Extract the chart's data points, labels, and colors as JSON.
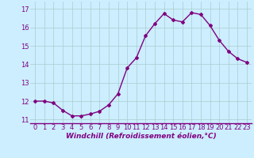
{
  "x": [
    0,
    1,
    2,
    3,
    4,
    5,
    6,
    7,
    8,
    9,
    10,
    11,
    12,
    13,
    14,
    15,
    16,
    17,
    18,
    19,
    20,
    21,
    22,
    23
  ],
  "y": [
    12.0,
    12.0,
    11.9,
    11.5,
    11.2,
    11.2,
    11.3,
    11.45,
    11.8,
    12.4,
    13.8,
    14.35,
    15.55,
    16.2,
    16.75,
    16.4,
    16.3,
    16.8,
    16.7,
    16.1,
    15.3,
    14.7,
    14.3,
    14.1
  ],
  "line_color": "#800080",
  "marker": "D",
  "marker_size": 2.0,
  "bg_color": "#cceeff",
  "grid_color": "#aacccc",
  "xlabel": "Windchill (Refroidissement éolien,°C)",
  "xlabel_fontsize": 6.5,
  "tick_fontsize": 6,
  "ylim": [
    10.8,
    17.4
  ],
  "yticks": [
    11,
    12,
    13,
    14,
    15,
    16,
    17
  ],
  "xticks": [
    0,
    1,
    2,
    3,
    4,
    5,
    6,
    7,
    8,
    9,
    10,
    11,
    12,
    13,
    14,
    15,
    16,
    17,
    18,
    19,
    20,
    21,
    22,
    23
  ],
  "line_width": 1.0,
  "title": ""
}
